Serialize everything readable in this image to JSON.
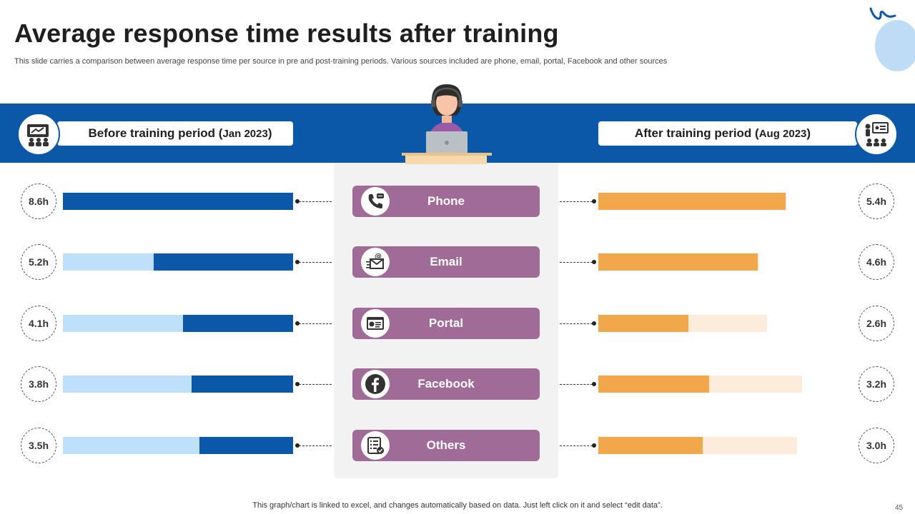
{
  "title": "Average response time results after training",
  "subtitle": "This slide carries a comparison between average response time per source in pre and post-training periods. Various sources included are phone, email, portal, Facebook and other sources",
  "left_header": {
    "label": "Before training period (",
    "date": "Jan 2023",
    "close": ")"
  },
  "right_header": {
    "label": "After training period (",
    "date": "Aug 2023",
    "close": ")"
  },
  "footnote": "This graph/chart is linked to excel, and changes automatically based on data. Just left click on it and select “edit data”.",
  "page_number": "45",
  "colors": {
    "band": "#0b57a8",
    "before_fill": "#0b57a8",
    "before_track": "#bfe0fa",
    "after_fill": "#f2a74b",
    "after_track": "#fdebdb",
    "source_button": "#a06b97"
  },
  "chart_data": {
    "type": "bar",
    "title": "Average response time results after training",
    "categories": [
      "Phone",
      "Email",
      "Portal",
      "Facebook",
      "Others"
    ],
    "unit": "h",
    "series": [
      {
        "name": "Before training period (Jan 2023)",
        "values": [
          8.6,
          5.2,
          4.1,
          3.8,
          3.5
        ],
        "labels": [
          "8.6h",
          "5.2h",
          "4.1h",
          "3.8h",
          "3.5h"
        ]
      },
      {
        "name": "After training period (Aug 2023)",
        "values": [
          5.4,
          4.6,
          2.6,
          3.2,
          3.0
        ],
        "labels": [
          "5.4h",
          "4.6h",
          "2.6h",
          "3.2h",
          "3.0h"
        ]
      }
    ],
    "after_track_totals": [
      7.0,
      6.0,
      6.3,
      7.6,
      7.4
    ],
    "xlim": [
      0,
      10
    ]
  },
  "icons": [
    "phone-icon",
    "email-icon",
    "portal-icon",
    "facebook-icon",
    "others-icon"
  ]
}
